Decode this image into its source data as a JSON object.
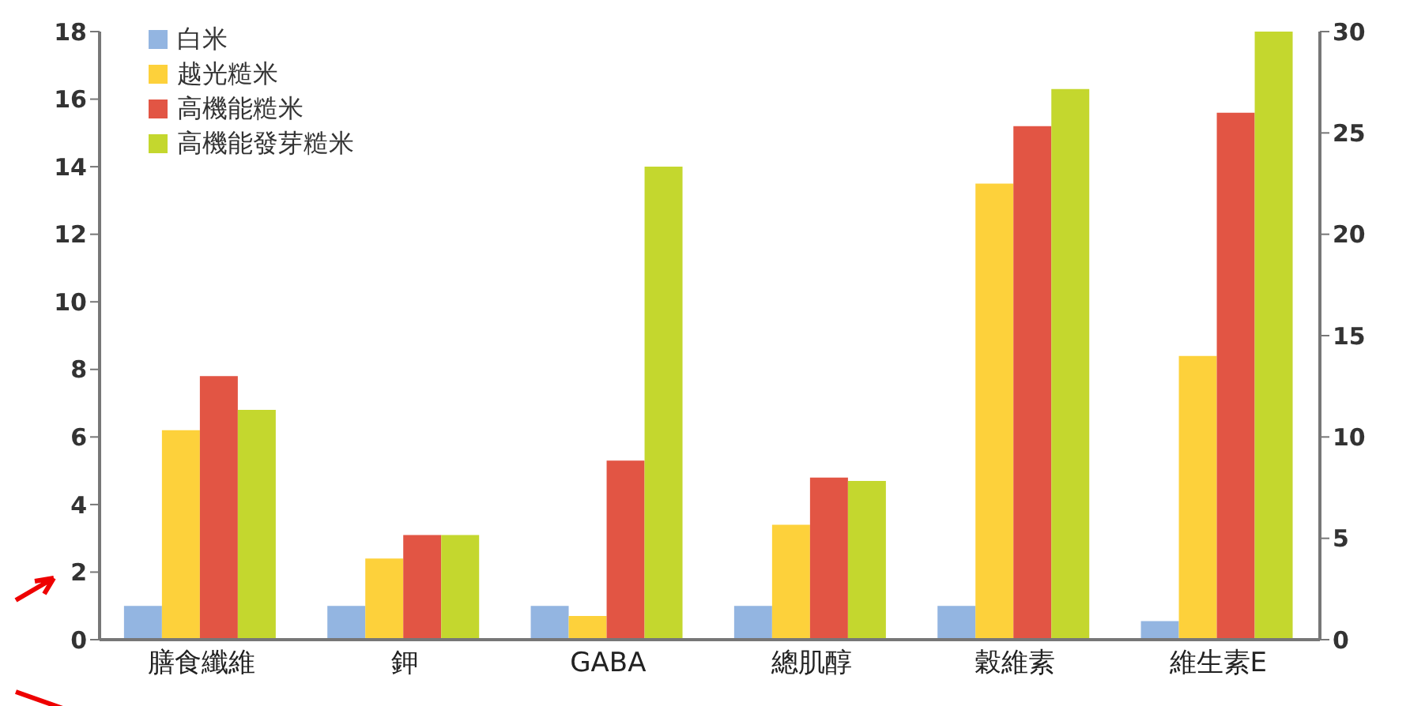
{
  "chart_data": {
    "type": "bar",
    "categories": [
      "膳食纖維",
      "鉀",
      "GABA",
      "總肌醇",
      "穀維素",
      "維生素E"
    ],
    "series": [
      {
        "name": "白米",
        "color": "#93b5e1",
        "values": [
          1,
          1,
          1,
          1,
          1,
          0.55
        ]
      },
      {
        "name": "越光糙米",
        "color": "#fdd13b",
        "values": [
          6.2,
          2.4,
          0.7,
          3.4,
          13.5,
          8.4
        ]
      },
      {
        "name": "高機能糙米",
        "color": "#e25544",
        "values": [
          7.8,
          3.1,
          5.3,
          4.8,
          15.2,
          15.6
        ]
      },
      {
        "name": "高機能發芽糙米",
        "color": "#c4d72e",
        "values": [
          6.8,
          3.1,
          14,
          4.7,
          16.3,
          18
        ]
      }
    ],
    "ylim": [
      0,
      18
    ],
    "yticks": [
      0,
      2,
      4,
      6,
      8,
      10,
      12,
      14,
      16,
      18
    ],
    "y2lim": [
      0,
      30
    ],
    "y2ticks": [
      0,
      5,
      10,
      15,
      20,
      25,
      30
    ],
    "grid": false,
    "legend": "top left"
  }
}
